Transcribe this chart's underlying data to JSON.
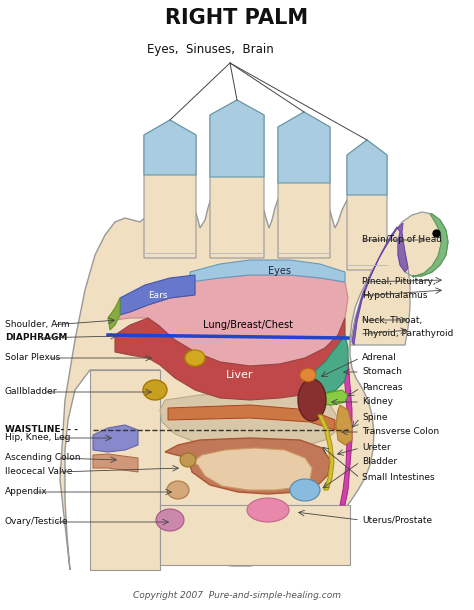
{
  "title": "RIGHT PALM",
  "subtitle": "Eyes,  Sinuses,  Brain",
  "copyright": "Copyright 2007  Pure-and-simple-healing.com",
  "bg_color": "#ffffff",
  "hand_color": "#f0dfc0",
  "hand_edge": "#999999",
  "finger_tip_color": "#aacce0",
  "thumb_green": "#7db87d",
  "thumb_purple": "#8866aa",
  "blue_line_color": "#2244bb"
}
